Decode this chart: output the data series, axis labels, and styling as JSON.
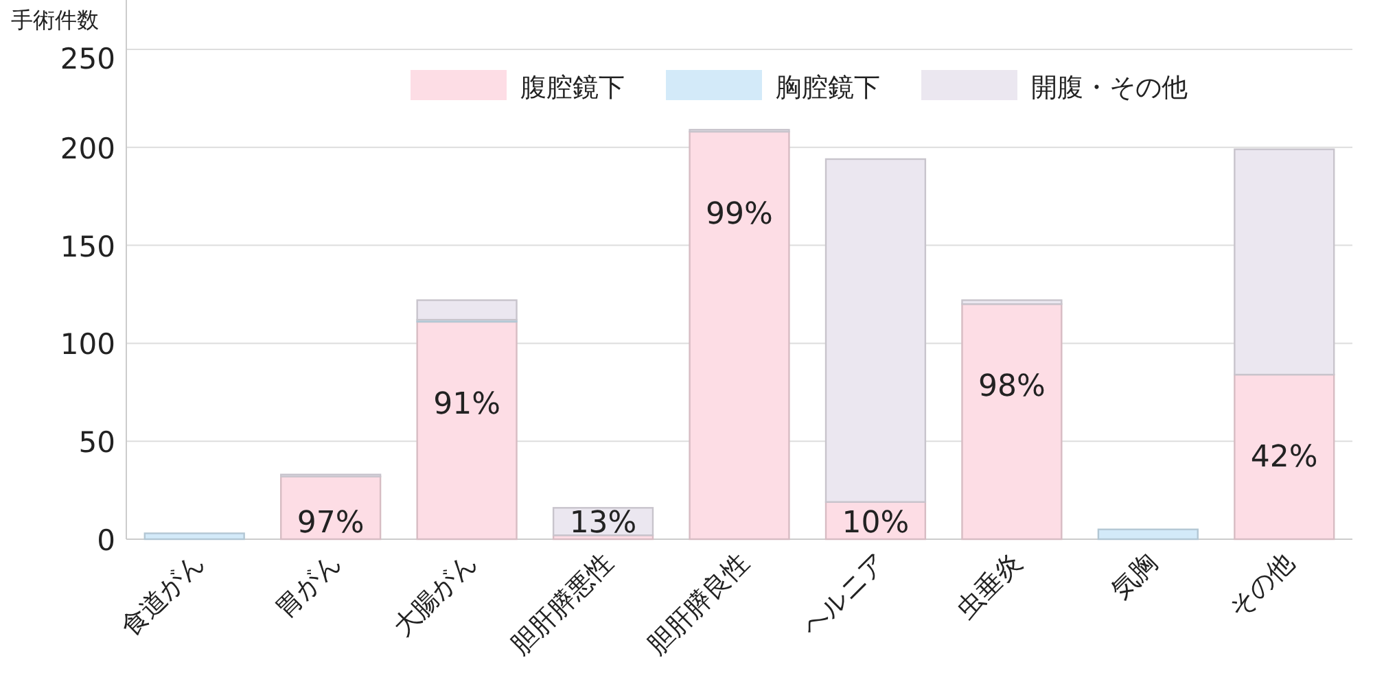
{
  "chart_data": {
    "type": "bar",
    "stacked": true,
    "ylabel": "手術件数",
    "categories": [
      "食道がん",
      "胃がん",
      "大腸がん",
      "胆肝膵悪性",
      "胆肝膵良性",
      "ヘルニア",
      "虫垂炎",
      "気胸",
      "その他"
    ],
    "series": [
      {
        "name": "腹腔鏡下",
        "color": "#fddde5",
        "values": [
          0,
          32,
          111,
          2,
          208,
          19,
          120,
          0,
          84
        ]
      },
      {
        "name": "胸腔鏡下",
        "color": "#d3eaf9",
        "values": [
          3,
          0,
          1,
          0,
          0,
          0,
          0,
          5,
          0
        ]
      },
      {
        "name": "開腹・その他",
        "color": "#ebe7f0",
        "values": [
          0,
          1,
          10,
          14,
          1,
          175,
          2,
          0,
          115
        ]
      }
    ],
    "annotations": [
      {
        "text": "97%",
        "x": "胃がん",
        "y": 32
      },
      {
        "text": "91%",
        "x": "大腸がん",
        "y": 111
      },
      {
        "text": "13%",
        "x": "胆肝膵悪性",
        "y": 2
      },
      {
        "text": "99%",
        "x": "胆肝膵良性",
        "y": 208
      },
      {
        "text": "10%",
        "x": "ヘルニア",
        "y": 19
      },
      {
        "text": "98%",
        "x": "虫垂炎",
        "y": 120
      },
      {
        "text": "42%",
        "x": "その他",
        "y": 84
      }
    ],
    "ylim": [
      0,
      250
    ],
    "yticks": [
      0,
      50,
      100,
      150,
      200,
      250
    ],
    "grid": "y",
    "legend": "top right"
  }
}
